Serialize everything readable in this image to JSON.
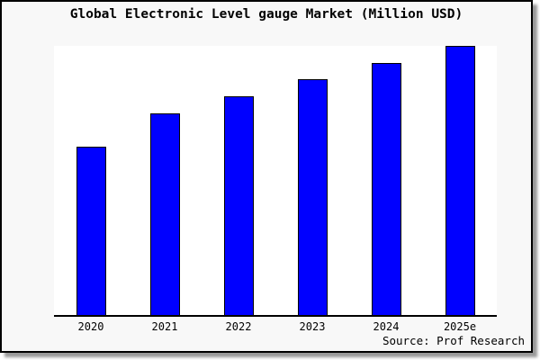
{
  "window": {
    "background": "#f8f8f8",
    "border_color": "#000000",
    "shadow_color": "#9a9a9a",
    "plot_background": "#ffffff"
  },
  "title": "Global Electronic Level gauge Market (Million USD)",
  "source_note": "Source: Prof Research",
  "chart_data": {
    "type": "bar",
    "title": "Global Electronic Level gauge Market (Million USD)",
    "categories": [
      "2020",
      "2021",
      "2022",
      "2023",
      "2024",
      "2025e"
    ],
    "values": [
      62.7,
      75.0,
      81.3,
      87.5,
      93.7,
      100.0
    ],
    "value_scale": "relative units, % of tallest bar (2025e); chart shows no y-axis tick labels or data labels",
    "xlabel": "",
    "ylabel": "",
    "ylim": [
      0,
      100
    ],
    "grid": false,
    "legend": null,
    "bar_color": "#0000ff",
    "bar_border_color": "#000000",
    "axis_color": "#000000",
    "source_note": "Source: Prof Research"
  }
}
